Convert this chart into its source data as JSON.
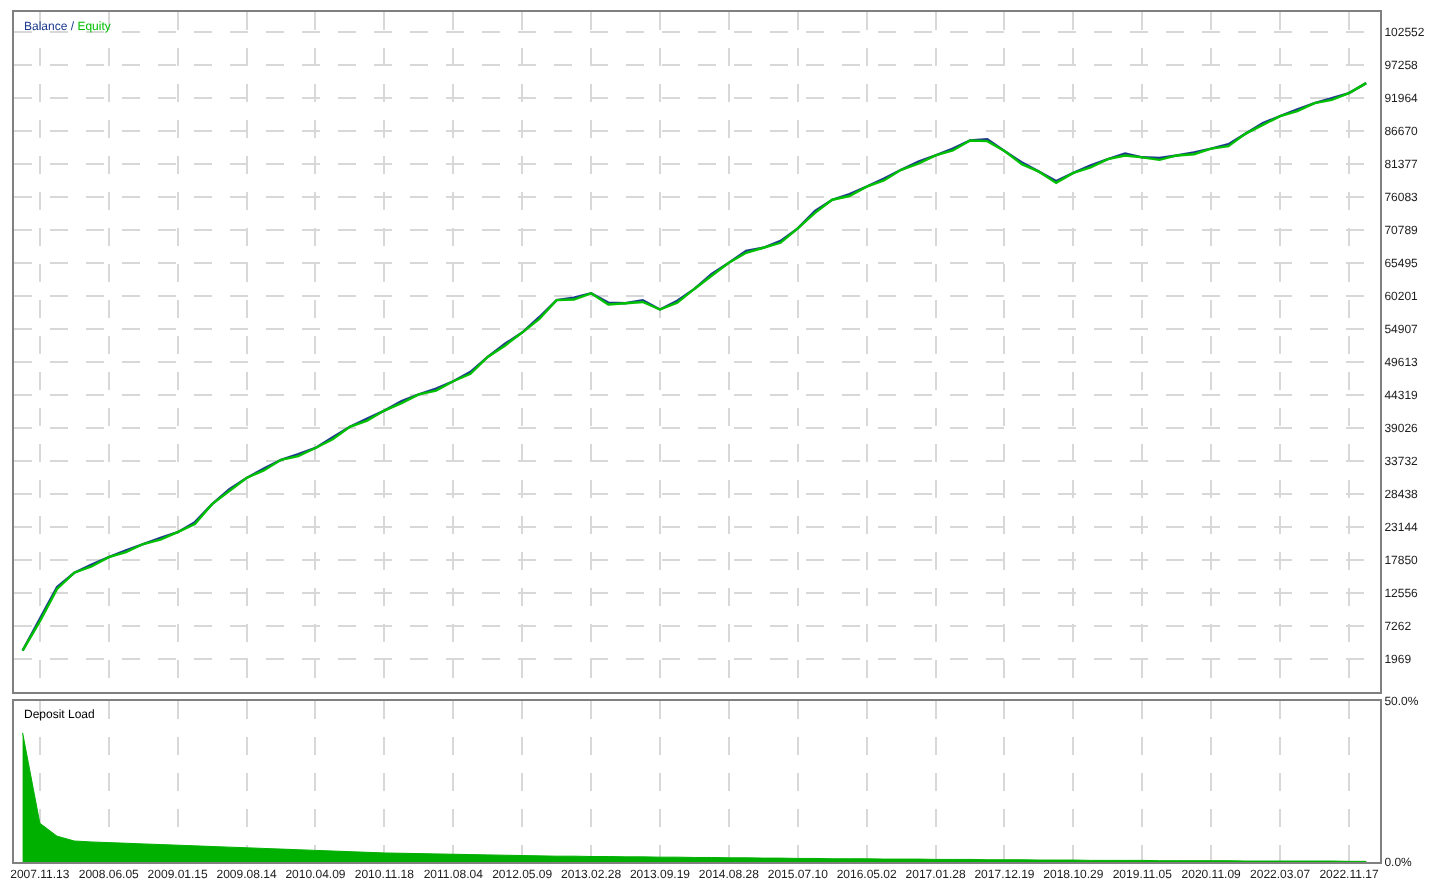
{
  "chart_data": [
    {
      "type": "line",
      "legend": "top left",
      "grid": true,
      "tick_labels": "y",
      "annotations": [
        "/"
      ],
      "categories": [
        null,
        "2007.11.13",
        null,
        null,
        null,
        "2008.06.05",
        null,
        null,
        null,
        "2009.01.15",
        null,
        null,
        null,
        "2009.08.14",
        null,
        null,
        null,
        "2010.04.09",
        null,
        null,
        null,
        "2010.11.18",
        null,
        null,
        null,
        "2011.08.04",
        null,
        null,
        null,
        "2012.05.09",
        null,
        null,
        null,
        "2013.02.28",
        null,
        null,
        null,
        "2013.09.19",
        null,
        null,
        null,
        "2014.08.28",
        null,
        null,
        null,
        "2015.07.10",
        null,
        null,
        null,
        "2016.05.02",
        null,
        null,
        null,
        "2017.01.28",
        null,
        null,
        null,
        "2017.12.19",
        null,
        null,
        null,
        "2018.10.29",
        null,
        null,
        null,
        "2019.11.05",
        null,
        null,
        null,
        "2020.11.09",
        null,
        null,
        null,
        "2022.03.07",
        null,
        null,
        null,
        "2022.11.17",
        null
      ],
      "ylim": [
        -3325,
        105700
      ],
      "yticks": [
        1969,
        7262,
        12556,
        17850,
        23144,
        28438,
        33732,
        39026,
        44319,
        49613,
        54907,
        60201,
        65495,
        70789,
        76083,
        81377,
        86670,
        91964,
        97258,
        102552
      ],
      "series": [
        {
          "name": "Balance",
          "color": "#1b3a8c",
          "values": [
            3300,
            8400,
            13500,
            15800,
            17100,
            18300,
            19400,
            20400,
            21400,
            22300,
            23900,
            26800,
            29200,
            31000,
            32500,
            33900,
            34800,
            35800,
            37500,
            39200,
            40500,
            41800,
            43300,
            44400,
            45300,
            46500,
            48000,
            50400,
            52500,
            54300,
            56800,
            59500,
            59900,
            60600,
            59100,
            59000,
            59500,
            58000,
            59400,
            61300,
            63700,
            65500,
            67400,
            67900,
            69000,
            71000,
            73800,
            75600,
            76500,
            77700,
            79000,
            80400,
            81700,
            82700,
            83800,
            85100,
            85300,
            83400,
            81600,
            80100,
            78600,
            79900,
            81100,
            82100,
            83000,
            82400,
            82300,
            82700,
            83200,
            83800,
            84500,
            86200,
            87900,
            89000,
            90100,
            91100,
            91900,
            92700,
            94300
          ]
        },
        {
          "name": "Equity",
          "color": "#00c000",
          "values": [
            3300,
            8000,
            13200,
            15800,
            16800,
            18300,
            19100,
            20400,
            21100,
            22300,
            23600,
            26800,
            28900,
            31000,
            32200,
            33900,
            34500,
            35800,
            37200,
            39200,
            40200,
            41800,
            43000,
            44400,
            45000,
            46500,
            47700,
            50400,
            52200,
            54300,
            56500,
            59500,
            59600,
            60600,
            58800,
            59000,
            59200,
            58000,
            59100,
            61300,
            63400,
            65500,
            67100,
            67900,
            68700,
            71000,
            73500,
            75600,
            76200,
            77700,
            78700,
            80400,
            81400,
            82700,
            83500,
            85100,
            85000,
            83400,
            81300,
            80100,
            78300,
            79900,
            80800,
            82100,
            82700,
            82400,
            82000,
            82700,
            82900,
            83800,
            84200,
            86200,
            87600,
            89000,
            89800,
            91100,
            91600,
            92700,
            94300
          ]
        }
      ]
    },
    {
      "type": "area",
      "title": "Deposit Load",
      "grid": true,
      "categories": [
        null,
        "2007.11.13",
        null,
        null,
        null,
        "2008.06.05",
        null,
        null,
        null,
        "2009.01.15",
        null,
        null,
        null,
        "2009.08.14",
        null,
        null,
        null,
        "2010.04.09",
        null,
        null,
        null,
        "2010.11.18",
        null,
        null,
        null,
        "2011.08.04",
        null,
        null,
        null,
        "2012.05.09",
        null,
        null,
        null,
        "2013.02.28",
        null,
        null,
        null,
        "2013.09.19",
        null,
        null,
        null,
        "2014.08.28",
        null,
        null,
        null,
        "2015.07.10",
        null,
        null,
        null,
        "2016.05.02",
        null,
        null,
        null,
        "2017.01.28",
        null,
        null,
        null,
        "2017.12.19",
        null,
        null,
        null,
        "2018.10.29",
        null,
        null,
        null,
        "2019.11.05",
        null,
        null,
        null,
        "2020.11.09",
        null,
        null,
        null,
        "2022.03.07",
        null,
        null,
        null,
        "2022.11.17",
        null
      ],
      "ylim": [
        0,
        50
      ],
      "yticks": [
        {
          "value": 0,
          "label": "0.0%"
        },
        {
          "value": 50,
          "label": "50.0%"
        }
      ],
      "series": [
        {
          "color": "#00b000",
          "values": [
            40,
            12,
            8,
            6.5,
            6.2,
            6,
            5.8,
            5.6,
            5.4,
            5.2,
            5,
            4.8,
            4.6,
            4.4,
            4.2,
            4,
            3.8,
            3.6,
            3.4,
            3.2,
            3,
            2.8,
            2.7,
            2.6,
            2.5,
            2.4,
            2.3,
            2.2,
            2.1,
            2,
            1.9,
            1.8,
            1.8,
            1.7,
            1.7,
            1.6,
            1.6,
            1.5,
            1.5,
            1.4,
            1.4,
            1.3,
            1.3,
            1.2,
            1.2,
            1.1,
            1.1,
            1,
            1,
            1,
            0.9,
            0.9,
            0.9,
            0.8,
            0.8,
            0.8,
            0.7,
            0.7,
            0.7,
            0.6,
            0.6,
            0.6,
            0.5,
            0.5,
            0.5,
            0.5,
            0.4,
            0.4,
            0.4,
            0.4,
            0.4,
            0.3,
            0.3,
            0.3,
            0.3,
            0.3,
            0.3,
            0.2,
            0.2
          ]
        }
      ]
    }
  ]
}
